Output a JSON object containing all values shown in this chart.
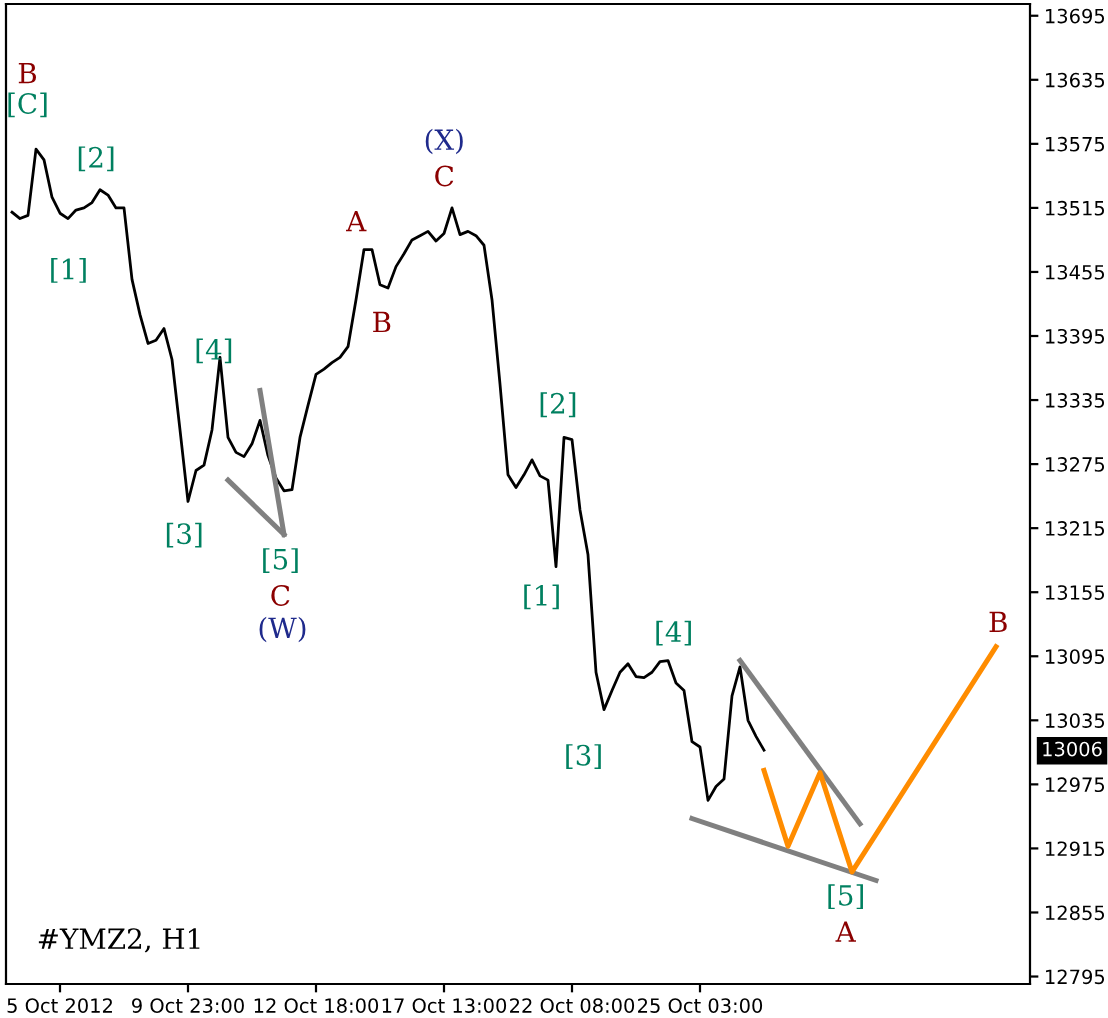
{
  "chart_data": {
    "type": "line",
    "ylim": [
      12788,
      13706
    ],
    "categories": [
      null,
      null,
      null,
      null,
      null,
      null,
      "5 Oct 2012",
      null,
      null,
      null,
      null,
      null,
      null,
      null,
      null,
      null,
      null,
      null,
      null,
      null,
      null,
      null,
      "9 Oct 23:00",
      null,
      null,
      null,
      null,
      null,
      null,
      null,
      null,
      null,
      null,
      null,
      null,
      null,
      null,
      null,
      "12 Oct 18:00",
      null,
      null,
      null,
      null,
      null,
      null,
      null,
      null,
      null,
      null,
      null,
      null,
      null,
      null,
      null,
      "17 Oct 13:00",
      null,
      null,
      null,
      null,
      null,
      null,
      null,
      null,
      null,
      null,
      null,
      null,
      null,
      null,
      null,
      "22 Oct 08:00",
      null,
      null,
      null,
      null,
      null,
      null,
      null,
      null,
      null,
      null,
      null,
      null,
      null,
      null,
      null,
      "25 Oct 03:00",
      null,
      null,
      null,
      null,
      null,
      null,
      null,
      null,
      null,
      null,
      null,
      null,
      null,
      null,
      null,
      null,
      null,
      null,
      null,
      null,
      null,
      null,
      null,
      null,
      null,
      null,
      null,
      null,
      null,
      null,
      null,
      null,
      null,
      null,
      null,
      null,
      null,
      null,
      null,
      null,
      null
    ],
    "yticks": [
      12795,
      12855,
      12915,
      12975,
      13035,
      13095,
      13155,
      13215,
      13275,
      13335,
      13395,
      13455,
      13515,
      13575,
      13635,
      13695
    ],
    "grid": false,
    "marker": "none",
    "line_style": "solid",
    "series": [
      {
        "color": "#000000",
        "values": [
          13511,
          13505,
          13508,
          13570,
          13560,
          13525,
          13510,
          13505,
          13513,
          13515,
          13520,
          13532,
          13527,
          13515,
          13515,
          13448,
          13415,
          13388,
          13391,
          13402,
          13373,
          13307,
          13240,
          13269,
          13274,
          13307,
          13375,
          13300,
          13286,
          13282,
          13294,
          13316,
          13283,
          13262,
          13250,
          13251,
          13300,
          13330,
          13359,
          13364,
          13370,
          13375,
          13385,
          13429,
          13476,
          13476,
          13443,
          13440,
          13460,
          13472,
          13485,
          13489,
          13493,
          13484,
          13491,
          13515,
          13490,
          13493,
          13489,
          13480,
          13429,
          13350,
          13265,
          13253,
          13265,
          13279,
          13264,
          13260,
          13179,
          13300,
          13298,
          13232,
          13190,
          13080,
          13045,
          13063,
          13080,
          13088,
          13076,
          13075,
          13080,
          13090,
          13091,
          13070,
          13063,
          13015,
          13010,
          12960,
          12973,
          12980,
          13058,
          13085,
          13035,
          13020,
          13007,
          null,
          null,
          null,
          null,
          null,
          null,
          null,
          null,
          null,
          null,
          null,
          null,
          null,
          null,
          null,
          null,
          null,
          null,
          null,
          null,
          null,
          null,
          null,
          null,
          null,
          null,
          null,
          null,
          null,
          null,
          null,
          null,
          null
        ]
      },
      {
        "color": "#808080",
        "values": [
          null,
          null,
          null,
          null,
          null,
          null,
          null,
          null,
          null,
          null,
          null,
          null,
          null,
          null,
          null,
          null,
          null,
          null,
          null,
          null,
          null,
          null,
          null,
          null,
          null,
          null,
          null,
          null,
          null,
          null,
          null,
          13344,
          null,
          null,
          13209,
          null,
          null,
          null,
          null,
          null,
          null,
          null,
          null,
          null,
          null,
          null,
          null,
          null,
          null,
          null,
          null,
          null,
          null,
          null,
          null,
          null,
          null,
          null,
          null,
          null,
          null,
          null,
          null,
          null,
          null,
          null,
          null,
          null,
          null,
          null,
          null,
          null,
          null,
          null,
          null,
          null,
          null,
          null,
          null,
          null,
          null,
          null,
          null,
          null,
          null,
          null,
          null,
          null,
          null,
          null,
          null,
          null,
          null,
          null,
          null,
          null,
          null,
          null,
          null,
          null,
          null,
          null,
          null,
          null,
          null,
          null,
          null,
          null,
          null,
          null,
          null,
          null,
          null,
          null,
          null,
          null,
          null,
          null,
          null,
          null,
          null,
          null,
          null,
          null,
          null,
          null,
          null,
          null
        ]
      },
      {
        "color": "#808080",
        "values": [
          null,
          null,
          null,
          null,
          null,
          null,
          null,
          null,
          null,
          null,
          null,
          null,
          null,
          null,
          null,
          null,
          null,
          null,
          null,
          null,
          null,
          null,
          null,
          null,
          null,
          null,
          null,
          13260,
          null,
          null,
          null,
          null,
          null,
          null,
          13209,
          null,
          null,
          null,
          null,
          null,
          null,
          null,
          null,
          null,
          null,
          null,
          null,
          null,
          null,
          null,
          null,
          null,
          null,
          null,
          null,
          null,
          null,
          null,
          null,
          null,
          null,
          null,
          null,
          null,
          null,
          null,
          null,
          null,
          null,
          null,
          null,
          null,
          null,
          null,
          null,
          null,
          null,
          null,
          null,
          null,
          null,
          null,
          null,
          null,
          null,
          null,
          null,
          null,
          null,
          null,
          null,
          null,
          null,
          null,
          null,
          null,
          null,
          null,
          null,
          null,
          null,
          null,
          null,
          null,
          null,
          null,
          null,
          null,
          null,
          null,
          null,
          null,
          null,
          null,
          null,
          null,
          null,
          null,
          null,
          null,
          null,
          null,
          null,
          null,
          null,
          null,
          null,
          null
        ]
      },
      {
        "color": "#808080",
        "values": [
          null,
          null,
          null,
          null,
          null,
          null,
          null,
          null,
          null,
          null,
          null,
          null,
          null,
          null,
          null,
          null,
          null,
          null,
          null,
          null,
          null,
          null,
          null,
          null,
          null,
          null,
          null,
          null,
          null,
          null,
          null,
          null,
          null,
          null,
          null,
          null,
          null,
          null,
          null,
          null,
          null,
          null,
          null,
          null,
          null,
          null,
          null,
          null,
          null,
          null,
          null,
          null,
          null,
          null,
          null,
          null,
          null,
          null,
          null,
          null,
          null,
          null,
          null,
          null,
          null,
          null,
          null,
          null,
          null,
          null,
          null,
          null,
          null,
          null,
          null,
          null,
          null,
          null,
          null,
          null,
          null,
          null,
          null,
          null,
          null,
          null,
          null,
          null,
          null,
          null,
          null,
          13091,
          null,
          null,
          null,
          null,
          null,
          null,
          null,
          null,
          null,
          null,
          null,
          null,
          null,
          null,
          12938,
          null,
          null,
          null,
          null,
          null,
          null,
          null,
          null,
          null,
          null,
          null,
          null,
          null,
          null,
          null,
          null,
          null,
          null,
          null,
          null,
          null
        ]
      },
      {
        "color": "#808080",
        "values": [
          null,
          null,
          null,
          null,
          null,
          null,
          null,
          null,
          null,
          null,
          null,
          null,
          null,
          null,
          null,
          null,
          null,
          null,
          null,
          null,
          null,
          null,
          null,
          null,
          null,
          null,
          null,
          null,
          null,
          null,
          null,
          null,
          null,
          null,
          null,
          null,
          null,
          null,
          null,
          null,
          null,
          null,
          null,
          null,
          null,
          null,
          null,
          null,
          null,
          null,
          null,
          null,
          null,
          null,
          null,
          null,
          null,
          null,
          null,
          null,
          null,
          null,
          null,
          null,
          null,
          null,
          null,
          null,
          null,
          null,
          null,
          null,
          null,
          null,
          null,
          null,
          null,
          null,
          null,
          null,
          null,
          null,
          null,
          null,
          null,
          12943,
          null,
          null,
          null,
          null,
          null,
          null,
          null,
          null,
          null,
          null,
          null,
          null,
          null,
          null,
          null,
          null,
          null,
          null,
          null,
          null,
          null,
          null,
          12885,
          null,
          null,
          null,
          null,
          null,
          null,
          null,
          null,
          null,
          null,
          null,
          null,
          null,
          null,
          null,
          null,
          null,
          null,
          null
        ]
      },
      {
        "color": "#ff8c00",
        "values": [
          null,
          null,
          null,
          null,
          null,
          null,
          null,
          null,
          null,
          null,
          null,
          null,
          null,
          null,
          null,
          null,
          null,
          null,
          null,
          null,
          null,
          null,
          null,
          null,
          null,
          null,
          null,
          null,
          null,
          null,
          null,
          null,
          null,
          null,
          null,
          null,
          null,
          null,
          null,
          null,
          null,
          null,
          null,
          null,
          null,
          null,
          null,
          null,
          null,
          null,
          null,
          null,
          null,
          null,
          null,
          null,
          null,
          null,
          null,
          null,
          null,
          null,
          null,
          null,
          null,
          null,
          null,
          null,
          null,
          null,
          null,
          null,
          null,
          null,
          null,
          null,
          null,
          null,
          null,
          null,
          null,
          null,
          null,
          null,
          null,
          null,
          null,
          null,
          null,
          null,
          null,
          null,
          null,
          null,
          12988,
          null,
          null,
          12917,
          null,
          null,
          null,
          12986,
          null,
          null,
          null,
          12893,
          null,
          null,
          null,
          null,
          null,
          null,
          null,
          null,
          null,
          null,
          null,
          null,
          null,
          null,
          null,
          null,
          null,
          13104,
          null,
          null,
          null,
          null
        ]
      }
    ],
    "annotations": [
      "B",
      "[C]",
      "[2]",
      "[1]",
      "[4]",
      "[3]",
      "[5]",
      "C",
      "(W)",
      "A",
      "B",
      "(X)",
      "C",
      "[2]",
      "[1]",
      "[4]",
      "[3]",
      "[5]",
      "A",
      "B",
      "#YMZ2, H1",
      "13006"
    ]
  }
}
